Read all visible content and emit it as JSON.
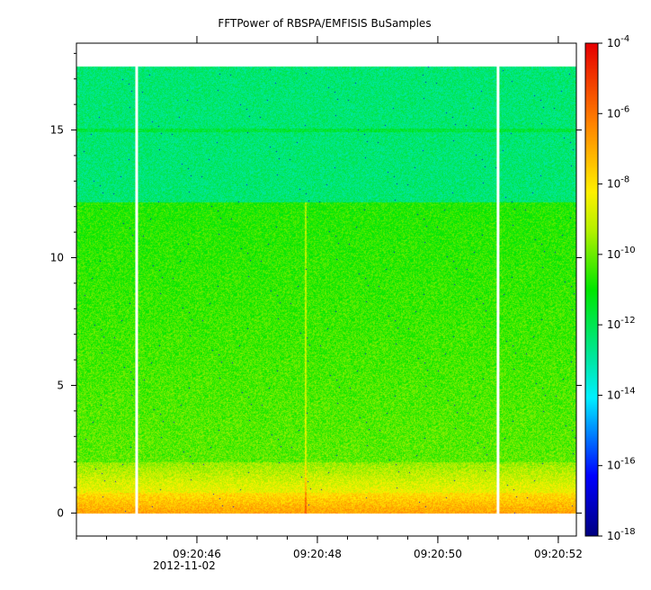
{
  "chart_data": {
    "type": "heatmap",
    "title": "FFTPower of RBSPA/EMFISIS  BuSamples",
    "xlabel": "",
    "ylabel": "",
    "date_label": "2012-11-02",
    "x_range": [
      "09:20:44.0",
      "09:20:52.3"
    ],
    "x_ticks": [
      "09:20:46",
      "09:20:48",
      "09:20:50",
      "09:20:52"
    ],
    "y_range": [
      -0.9,
      18.4
    ],
    "y_ticks": [
      0,
      5,
      10,
      15
    ],
    "colorbar": {
      "scale": "log",
      "range": [
        1e-18,
        0.0001
      ],
      "ticks": [
        {
          "value": 0.0001,
          "label": "10",
          "exp": "-4"
        },
        {
          "value": 1e-06,
          "label": "10",
          "exp": "-6"
        },
        {
          "value": 1e-08,
          "label": "10",
          "exp": "-8"
        },
        {
          "value": 1e-10,
          "label": "10",
          "exp": "-10"
        },
        {
          "value": 1e-12,
          "label": "10",
          "exp": "-12"
        },
        {
          "value": 1e-14,
          "label": "10",
          "exp": "-14"
        },
        {
          "value": 1e-16,
          "label": "10",
          "exp": "-16"
        },
        {
          "value": 1e-18,
          "label": "10",
          "exp": "-18"
        }
      ]
    },
    "data_extent": {
      "x": [
        "09:20:44.0",
        "09:20:52.3"
      ],
      "y_max": 17.5
    },
    "gaps": [
      "09:20:45.0",
      "09:20:51.0"
    ],
    "grid": false
  }
}
